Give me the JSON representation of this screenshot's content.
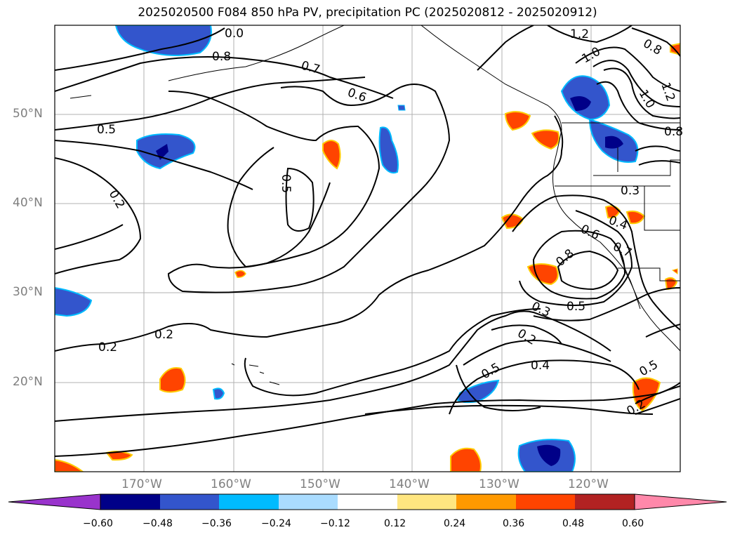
{
  "title": "2025020500 F084 850 hPa PV, precipitation PC (2025020812 - 2025020912)",
  "lat_labels": [
    "50°N",
    "40°N",
    "30°N",
    "20°N"
  ],
  "lon_labels": [
    "170°W",
    "160°W",
    "150°W",
    "140°W",
    "130°W",
    "120°W"
  ],
  "contour_labels": [
    "0.8",
    "0.7",
    "0.6",
    "0.5",
    "0.2",
    "0.5",
    "0.2",
    "0.2",
    "1.0",
    "1.2",
    "0.8",
    "1.0",
    "1.2",
    "0.8",
    "0.3",
    "0.4",
    "0.6",
    "0.7",
    "0.8",
    "0.3",
    "0.5",
    "0.2",
    "0.4",
    "0.5",
    "0.5",
    "0.2",
    "0.0"
  ],
  "colorbar": {
    "ticks": [
      "−0.60",
      "−0.48",
      "−0.36",
      "−0.24",
      "−0.12",
      "0.12",
      "0.24",
      "0.36",
      "0.48",
      "0.60"
    ],
    "colors": [
      "#9933cc",
      "#000088",
      "#3355cc",
      "#00bbff",
      "#aadcff",
      "#ffffff",
      "#ffe680",
      "#ff9900",
      "#ff4400",
      "#b22222",
      "#ff88aa"
    ]
  }
}
